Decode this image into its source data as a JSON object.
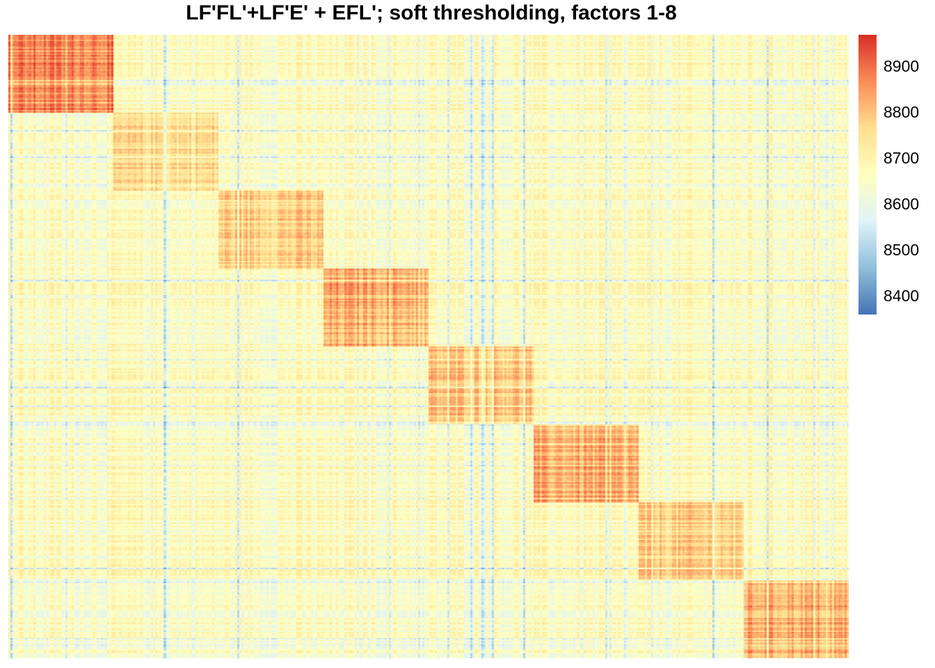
{
  "chart_data": {
    "type": "heatmap",
    "title": "LF'FL'+LF'E' + EFL'; soft thresholding, factors 1-8",
    "colorbar": {
      "range": [
        8360,
        8970
      ],
      "ticks": [
        "8400",
        "8500",
        "8600",
        "8700",
        "8800",
        "8900"
      ],
      "colors": [
        "#4575B4",
        "#91BFDB",
        "#E0F3F8",
        "#FFFFBF",
        "#FEE090",
        "#FC8D59",
        "#D73027"
      ]
    },
    "rows": 400,
    "cols": 400,
    "structure": "block-diagonal",
    "blocks": [
      {
        "factor": 1,
        "rows": [
          1,
          50
        ],
        "cols": [
          1,
          50
        ],
        "level": 8850
      },
      {
        "factor": 2,
        "rows": [
          51,
          100
        ],
        "cols": [
          51,
          100
        ],
        "level": 8760
      },
      {
        "factor": 3,
        "rows": [
          101,
          150
        ],
        "cols": [
          101,
          150
        ],
        "level": 8780
      },
      {
        "factor": 4,
        "rows": [
          151,
          200
        ],
        "cols": [
          151,
          200
        ],
        "level": 8820
      },
      {
        "factor": 5,
        "rows": [
          201,
          250
        ],
        "cols": [
          201,
          250
        ],
        "level": 8790
      },
      {
        "factor": 6,
        "rows": [
          251,
          300
        ],
        "cols": [
          251,
          300
        ],
        "level": 8820
      },
      {
        "factor": 7,
        "rows": [
          301,
          350
        ],
        "cols": [
          301,
          350
        ],
        "level": 8770
      },
      {
        "factor": 8,
        "rows": [
          351,
          400
        ],
        "cols": [
          351,
          400
        ],
        "level": 8830
      }
    ],
    "background_level": 8660,
    "legend_position": "right"
  }
}
